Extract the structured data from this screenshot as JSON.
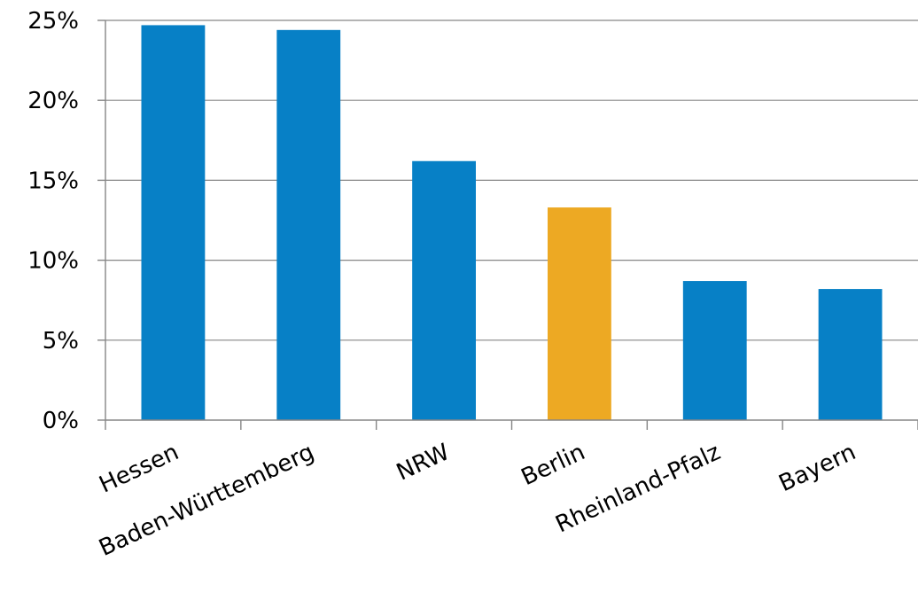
{
  "chart_data": {
    "type": "bar",
    "title": "",
    "xlabel": "",
    "ylabel": "",
    "categories": [
      "Hessen",
      "Baden-Württemberg",
      "NRW",
      "Berlin",
      "Rheinland-Pfalz",
      "Bayern"
    ],
    "values": [
      24.7,
      24.4,
      16.2,
      13.3,
      8.7,
      8.2
    ],
    "ylim": [
      0,
      25
    ],
    "yticks": [
      0,
      5,
      10,
      15,
      20,
      25
    ],
    "ytick_labels": [
      "0%",
      "5%",
      "10%",
      "15%",
      "20%",
      "25%"
    ],
    "grid": true,
    "colors": {
      "default": "#0780C6",
      "highlight": "#EDA923",
      "bars": [
        "#0780C6",
        "#0780C6",
        "#0780C6",
        "#EDA923",
        "#0780C6",
        "#0780C6"
      ]
    },
    "legend": "none"
  }
}
